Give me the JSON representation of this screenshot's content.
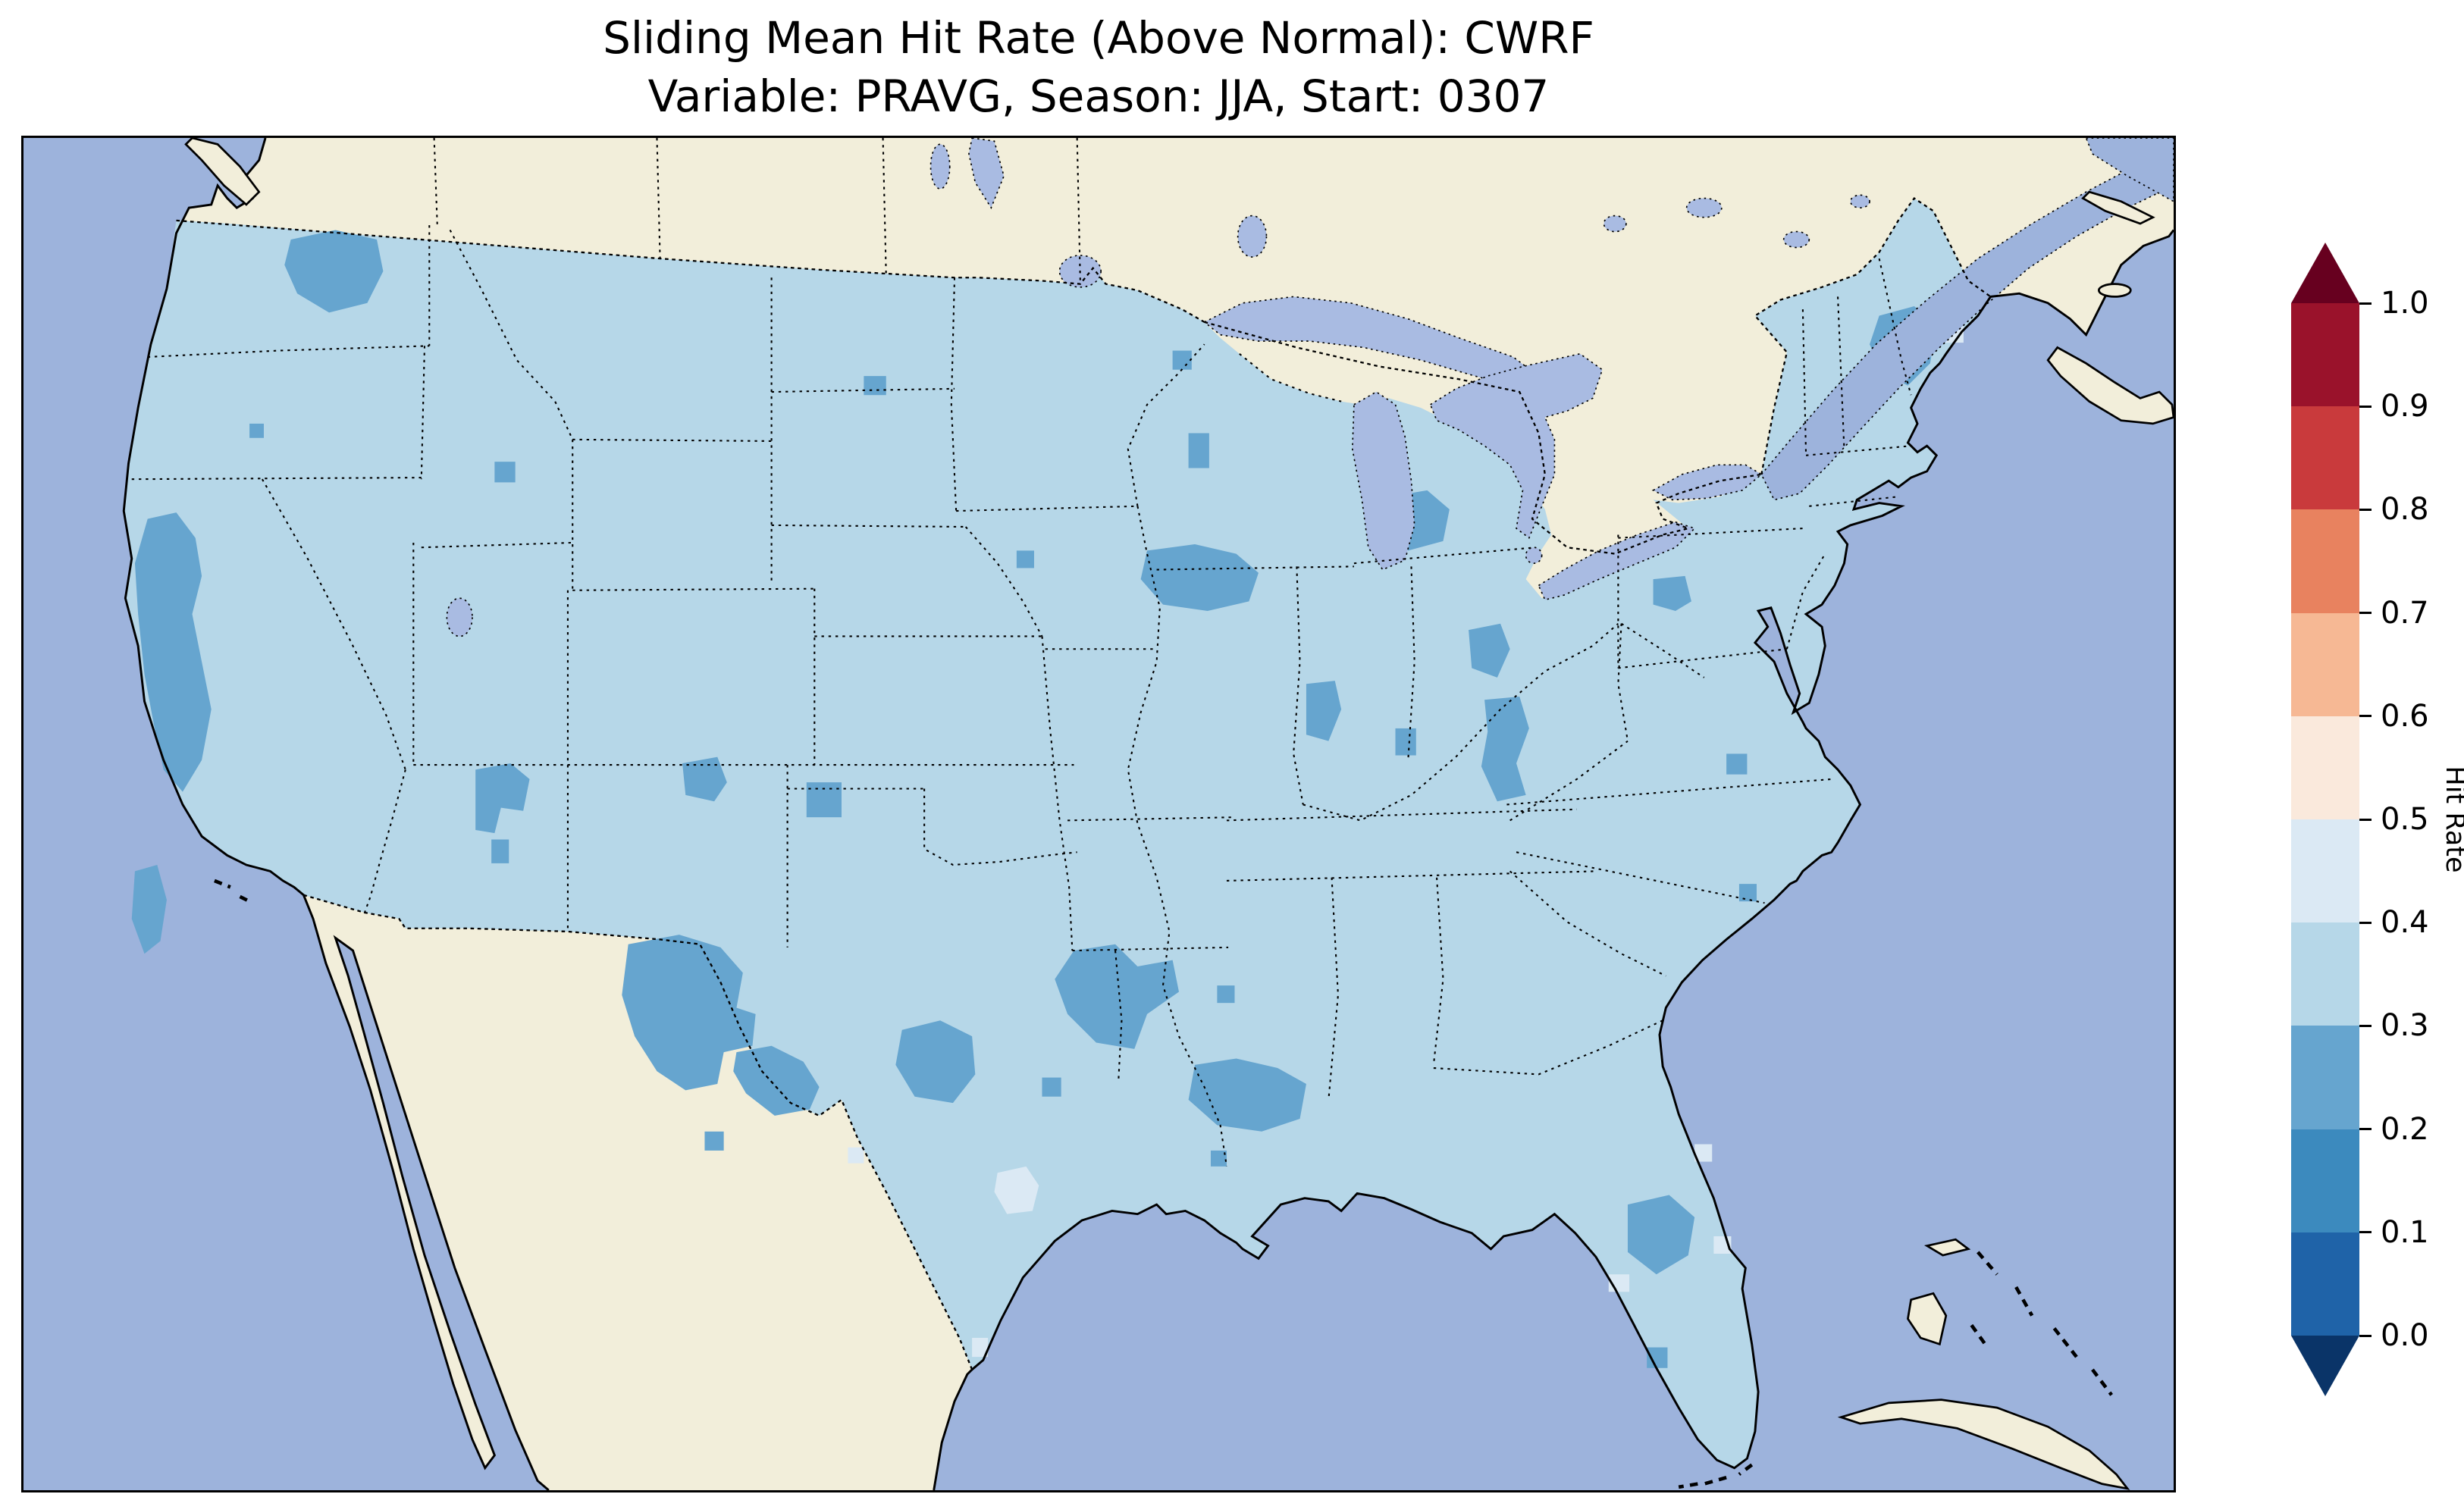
{
  "title": {
    "line1": "Sliding Mean Hit Rate (Above Normal): CWRF",
    "line2": "Variable: PRAVG, Season: JJA, Start: 0307"
  },
  "colorbar": {
    "label": "Hit Rate",
    "ticks": [
      "1.0",
      "0.9",
      "0.8",
      "0.7",
      "0.6",
      "0.5",
      "0.4",
      "0.3",
      "0.2",
      "0.1",
      "0.0"
    ],
    "bin_colors_bottom_to_top": [
      "#1f63a8",
      "#3c8abe",
      "#66a5cf",
      "#b6d7e8",
      "#dbe9f4",
      "#fae9dc",
      "#f6b894",
      "#e8825f",
      "#c93a3c",
      "#9a122b"
    ],
    "arrow_top_color": "#67001f",
    "arrow_bottom_color": "#0a3468",
    "extend": "both"
  },
  "colors": {
    "ocean": "#9db3dc",
    "land": "#f2eeda",
    "lakes": "#a9bbe2",
    "us_hit_03_04": "#b6d7e8",
    "hit_02_03": "#66a5cf",
    "hit_04_05": "#dbe9f4",
    "coastline": "#000000",
    "borders": "#000000"
  },
  "chart_data": {
    "type": "choropleth_map",
    "region": "Contiguous United States",
    "metric": "Sliding Mean Hit Rate (Above Normal)",
    "model": "CWRF",
    "variable": "PRAVG",
    "season": "JJA",
    "start": "0307",
    "colorbar": {
      "label": "Hit Rate",
      "range": [
        0.0,
        1.0
      ],
      "bin_size": 0.1,
      "extend": "both"
    },
    "observed_values": [
      {
        "area": "Most of CONUS",
        "hit_rate": "0.3-0.4"
      },
      {
        "area": "Central Washington",
        "hit_rate": "0.2-0.3"
      },
      {
        "area": "California Central Valley and southern CA coast",
        "hit_rate": "0.2-0.3"
      },
      {
        "area": "Central and southern Utah",
        "hit_rate": "0.2-0.3"
      },
      {
        "area": "Colorado / New Mexico border cells",
        "hit_rate": "0.2-0.3"
      },
      {
        "area": "Eastern New Mexico and West Texas",
        "hit_rate": "0.2-0.3"
      },
      {
        "area": "Texas Panhandle south area",
        "hit_rate": "0.2-0.3"
      },
      {
        "area": "North-central Texas / Oklahoma",
        "hit_rate": "0.2-0.3"
      },
      {
        "area": "Louisiana",
        "hit_rate": "0.2-0.3"
      },
      {
        "area": "Southern Minnesota / western Wisconsin",
        "hit_rate": "0.2-0.3"
      },
      {
        "area": "Central Lower Michigan",
        "hit_rate": "0.2-0.3"
      },
      {
        "area": "Central North Dakota (small cell)",
        "hit_rate": "0.2-0.3"
      },
      {
        "area": "Indiana / Ohio / Kentucky patches",
        "hit_rate": "0.2-0.3"
      },
      {
        "area": "Western Pennsylvania (small)",
        "hit_rate": "0.2-0.3"
      },
      {
        "area": "Central Maine",
        "hit_rate": "0.2-0.3"
      },
      {
        "area": "Central Florida",
        "hit_rate": "0.2-0.3"
      },
      {
        "area": "Scattered south Texas coast, Florida fringe, east Maine",
        "hit_rate": "0.4-0.5"
      }
    ],
    "no_data_areas": [
      "Canada",
      "Mexico",
      "Oceans",
      "Great Lakes"
    ]
  }
}
